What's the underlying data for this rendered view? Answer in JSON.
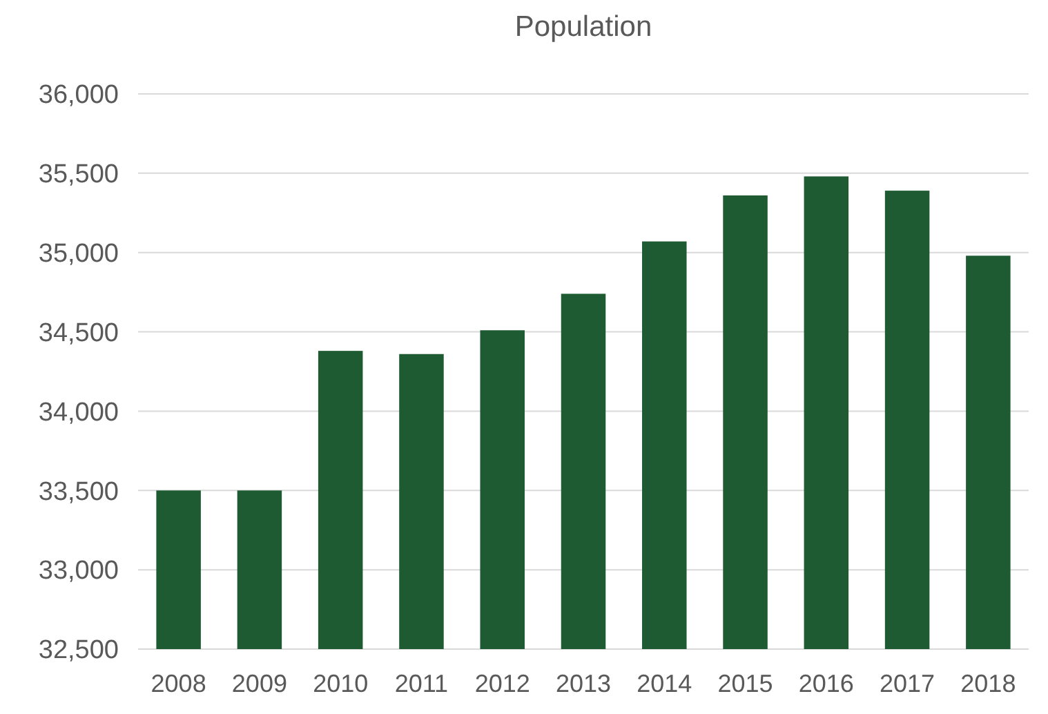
{
  "chart_data": {
    "type": "bar",
    "title": "Population",
    "categories": [
      "2008",
      "2009",
      "2010",
      "2011",
      "2012",
      "2013",
      "2014",
      "2015",
      "2016",
      "2017",
      "2018"
    ],
    "values": [
      33500,
      33500,
      34380,
      34360,
      34510,
      34740,
      35070,
      35360,
      35480,
      35390,
      34980
    ],
    "color": "#1e5b32",
    "ylim": [
      32500,
      36000
    ],
    "yticks": [
      {
        "value": 32500,
        "label": "32,500"
      },
      {
        "value": 33000,
        "label": "33,000"
      },
      {
        "value": 33500,
        "label": "33,500"
      },
      {
        "value": 34000,
        "label": "34,000"
      },
      {
        "value": 34500,
        "label": "34,500"
      },
      {
        "value": 35000,
        "label": "35,000"
      },
      {
        "value": 35500,
        "label": "35,500"
      },
      {
        "value": 36000,
        "label": "36,000"
      }
    ],
    "grid": "y"
  }
}
